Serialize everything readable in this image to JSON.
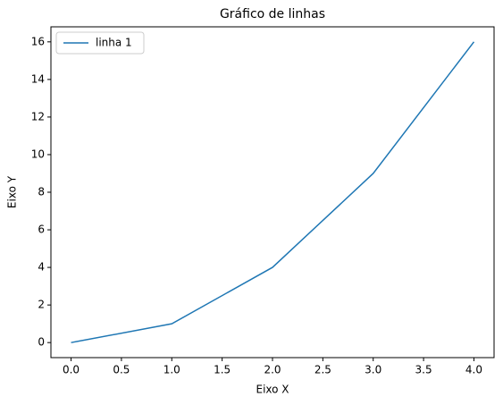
{
  "chart_data": {
    "type": "line",
    "title": "Gráfico de linhas",
    "x_label": "Eixo X",
    "y_label": "Eixo Y",
    "x": [
      0,
      1,
      2,
      3,
      4
    ],
    "series": [
      {
        "name": "linha 1",
        "color": "#1f77b4",
        "values": [
          0,
          1,
          4,
          9,
          16
        ]
      }
    ],
    "xlim": [
      -0.2,
      4.2
    ],
    "xticks": [
      {
        "value": 0,
        "label": "0.0"
      },
      0.5,
      {
        "value": 1,
        "label": "1.0"
      },
      1.5,
      {
        "value": 2,
        "label": "2.0"
      },
      2.5,
      {
        "value": 3,
        "label": "3.0"
      },
      3.5,
      {
        "value": 4,
        "label": "4.0"
      }
    ],
    "ylim": [
      -0.8,
      16.8
    ],
    "yticks": [
      0,
      2,
      4,
      6,
      8,
      10,
      12,
      14,
      16
    ],
    "legend": "upper left",
    "grid": false
  }
}
